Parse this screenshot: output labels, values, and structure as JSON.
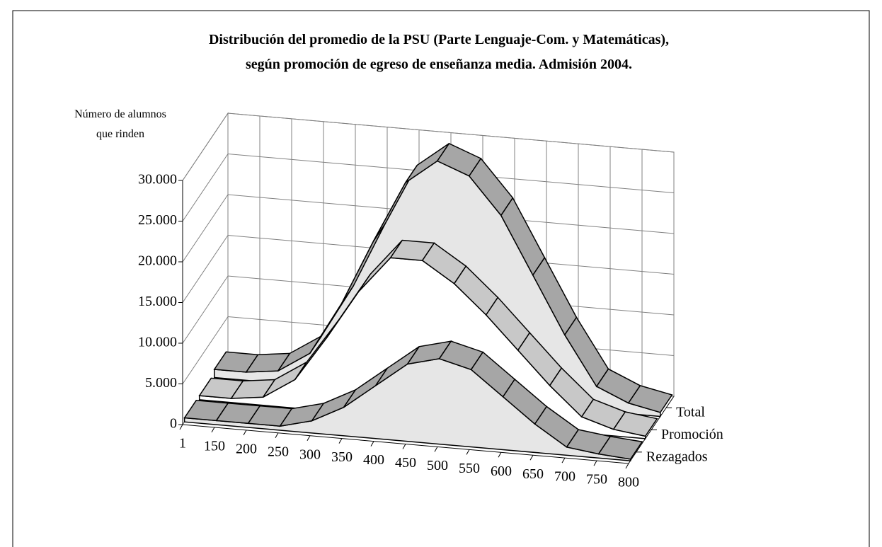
{
  "chart_data": {
    "type": "ribbon3d",
    "title": [
      "Distribución del promedio de la PSU (Parte Lenguaje-Com. y Matemáticas),",
      "según promoción de egreso de enseñanza media. Admisión 2004."
    ],
    "y_label": [
      "Número de alumnos",
      "que rinden"
    ],
    "categories": [
      "1",
      "150",
      "200",
      "250",
      "300",
      "350",
      "400",
      "450",
      "500",
      "550",
      "600",
      "650",
      "700",
      "750",
      "800"
    ],
    "series": [
      {
        "name": "Total",
        "color": "#a6a6a6",
        "fill": "#e6e6e6",
        "values": [
          1000,
          1000,
          1500,
          4000,
          10500,
          18500,
          26000,
          29000,
          27500,
          23000,
          16000,
          9000,
          3000,
          1300,
          500
        ]
      },
      {
        "name": "Promoción",
        "color": "#c8c8c8",
        "fill": "#ffffff",
        "values": [
          500,
          500,
          1000,
          3500,
          9000,
          15000,
          19500,
          19500,
          17000,
          13500,
          9500,
          5500,
          2000,
          800,
          300
        ]
      },
      {
        "name": "Rezagados",
        "color": "#a6a6a6",
        "fill": "#e6e6e6",
        "values": [
          500,
          500,
          500,
          500,
          1500,
          3500,
          6500,
          9500,
          10500,
          9500,
          6500,
          3500,
          1000,
          500,
          200
        ]
      }
    ],
    "ylim": [
      0,
      30000
    ],
    "yticks": [
      0,
      {
        "value": 5000,
        "label": "5.000"
      },
      {
        "value": 10000,
        "label": "10.000"
      },
      {
        "value": 15000,
        "label": "15.000"
      },
      {
        "value": 20000,
        "label": "20.000"
      },
      {
        "value": 25000,
        "label": "25.000"
      },
      {
        "value": 30000,
        "label": "30.000"
      }
    ],
    "grid": true
  }
}
